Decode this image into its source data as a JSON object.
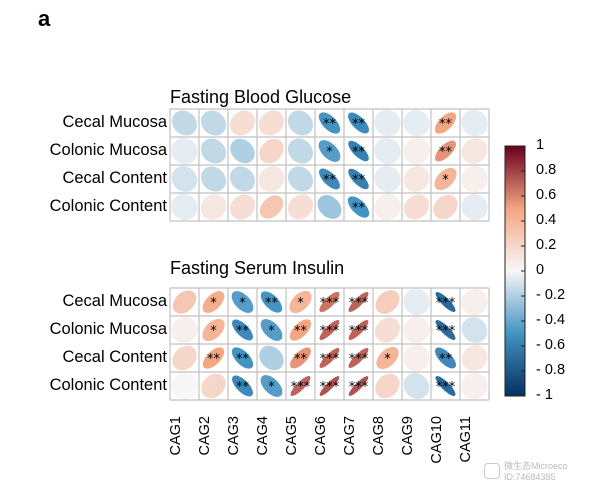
{
  "panel_label": "a",
  "chart_data": [
    {
      "type": "heatmap",
      "title": "Fasting Blood Glucose",
      "rows": [
        "Cecal Mucosa",
        "Colonic Mucosa",
        "Cecal Content",
        "Colonic Content"
      ],
      "columns": [
        "CAG1",
        "CAG2",
        "CAG3",
        "CAG4",
        "CAG5",
        "CAG6",
        "CAG7",
        "CAG8",
        "CAG9",
        "CAG10",
        "CAG11"
      ],
      "values": [
        [
          -0.15,
          -0.15,
          0.15,
          0.15,
          -0.15,
          -0.5,
          -0.55,
          -0.05,
          -0.05,
          0.5,
          -0.05
        ],
        [
          -0.05,
          -0.15,
          -0.2,
          0.2,
          -0.15,
          -0.45,
          -0.6,
          -0.05,
          0.05,
          0.55,
          0.1
        ],
        [
          -0.1,
          -0.15,
          -0.15,
          0.1,
          -0.15,
          -0.55,
          -0.6,
          -0.05,
          0.1,
          0.4,
          0.05
        ],
        [
          -0.05,
          0.1,
          0.15,
          0.3,
          0.15,
          -0.25,
          -0.5,
          0.05,
          0.15,
          0.2,
          -0.05
        ]
      ],
      "significance": [
        [
          "",
          "",
          "",
          "",
          "",
          "**",
          "**",
          "",
          "",
          "**",
          ""
        ],
        [
          "",
          "",
          "",
          "",
          "",
          "*",
          "**",
          "",
          "",
          "**",
          ""
        ],
        [
          "",
          "",
          "",
          "",
          "",
          "**",
          "**",
          "",
          "",
          "*",
          ""
        ],
        [
          "",
          "",
          "",
          "",
          "",
          "",
          "**",
          "",
          "",
          "",
          ""
        ]
      ]
    },
    {
      "type": "heatmap",
      "title": "Fasting Serum Insulin",
      "rows": [
        "Cecal Mucosa",
        "Colonic Mucosa",
        "Cecal Content",
        "Colonic Content"
      ],
      "columns": [
        "CAG1",
        "CAG2",
        "CAG3",
        "CAG4",
        "CAG5",
        "CAG6",
        "CAG7",
        "CAG8",
        "CAG9",
        "CAG10",
        "CAG11"
      ],
      "values": [
        [
          0.3,
          0.45,
          -0.45,
          -0.5,
          0.4,
          0.65,
          0.7,
          0.25,
          -0.05,
          -0.7,
          0.05
        ],
        [
          0.05,
          0.4,
          -0.55,
          -0.45,
          0.5,
          0.7,
          0.7,
          0.15,
          0.05,
          -0.7,
          -0.1
        ],
        [
          0.2,
          0.5,
          -0.5,
          -0.2,
          0.55,
          0.7,
          0.7,
          0.4,
          0.05,
          -0.55,
          0.1
        ],
        [
          0.0,
          0.2,
          -0.55,
          -0.45,
          0.7,
          0.75,
          0.75,
          0.2,
          -0.1,
          -0.7,
          0.05
        ]
      ],
      "significance": [
        [
          "",
          "*",
          "*",
          "**",
          "*",
          "***",
          "***",
          "",
          "",
          "***",
          ""
        ],
        [
          "",
          "*",
          "**",
          "*",
          "**",
          "***",
          "***",
          "",
          "",
          "***",
          ""
        ],
        [
          "",
          "**",
          "**",
          "",
          "**",
          "***",
          "***",
          "*",
          "",
          "**",
          ""
        ],
        [
          "",
          "",
          "**",
          "*",
          "***",
          "***",
          "***",
          "",
          "",
          "***",
          ""
        ]
      ]
    }
  ],
  "colorbar": {
    "ticks": [
      "1",
      "0.8",
      "0.6",
      "0.4",
      "0.2",
      "0",
      "- 0.2",
      "- 0.4",
      "- 0.6",
      "- 0.8",
      "- 1"
    ],
    "range": [
      -1,
      1
    ]
  },
  "colors": {
    "negative_end": "#053061",
    "negative_mid": "#4393c3",
    "neutral": "#f7f7f7",
    "positive_mid": "#f4a582",
    "positive_end": "#67001f",
    "grid": "#c0c0c0"
  },
  "watermark": {
    "line1": "微生态Microeco",
    "line2": "ID:74684385"
  }
}
